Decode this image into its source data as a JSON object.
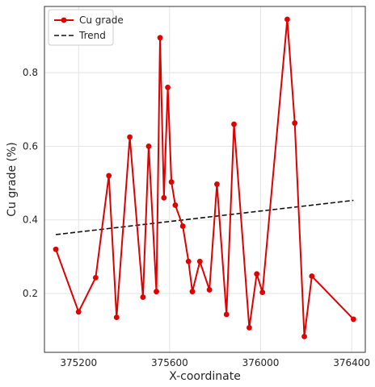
{
  "chart_data": {
    "type": "line",
    "xlabel": "X-coordinate",
    "ylabel": "Cu grade (%)",
    "xlim": [
      375050,
      376460
    ],
    "ylim": [
      0.04,
      0.98
    ],
    "x_ticks": [
      375200,
      375600,
      376000,
      376400
    ],
    "y_ticks": [
      0.2,
      0.4,
      0.6,
      0.8
    ],
    "grid": true,
    "legend_position": "top-left",
    "series": [
      {
        "name": "Cu grade",
        "color": "#e00000",
        "marker": "circle",
        "points": [
          {
            "x": 375100,
            "y": 0.32
          },
          {
            "x": 375200,
            "y": 0.15
          },
          {
            "x": 375275,
            "y": 0.243
          },
          {
            "x": 375333,
            "y": 0.52
          },
          {
            "x": 375367,
            "y": 0.135
          },
          {
            "x": 375425,
            "y": 0.625
          },
          {
            "x": 375483,
            "y": 0.19
          },
          {
            "x": 375508,
            "y": 0.6
          },
          {
            "x": 375542,
            "y": 0.205
          },
          {
            "x": 375558,
            "y": 0.895
          },
          {
            "x": 375575,
            "y": 0.46
          },
          {
            "x": 375592,
            "y": 0.76
          },
          {
            "x": 375608,
            "y": 0.503
          },
          {
            "x": 375625,
            "y": 0.44
          },
          {
            "x": 375658,
            "y": 0.383
          },
          {
            "x": 375683,
            "y": 0.287
          },
          {
            "x": 375700,
            "y": 0.205
          },
          {
            "x": 375733,
            "y": 0.287
          },
          {
            "x": 375775,
            "y": 0.21
          },
          {
            "x": 375808,
            "y": 0.497
          },
          {
            "x": 375850,
            "y": 0.143
          },
          {
            "x": 375883,
            "y": 0.66
          },
          {
            "x": 375950,
            "y": 0.107
          },
          {
            "x": 375983,
            "y": 0.253
          },
          {
            "x": 376008,
            "y": 0.203
          },
          {
            "x": 376117,
            "y": 0.945
          },
          {
            "x": 376150,
            "y": 0.663
          },
          {
            "x": 376192,
            "y": 0.083
          },
          {
            "x": 376225,
            "y": 0.247
          },
          {
            "x": 376408,
            "y": 0.13
          }
        ]
      },
      {
        "name": "Trend",
        "color": "#111111",
        "dash": "dashed",
        "points": [
          {
            "x": 375100,
            "y": 0.36
          },
          {
            "x": 376408,
            "y": 0.453
          }
        ]
      }
    ]
  }
}
